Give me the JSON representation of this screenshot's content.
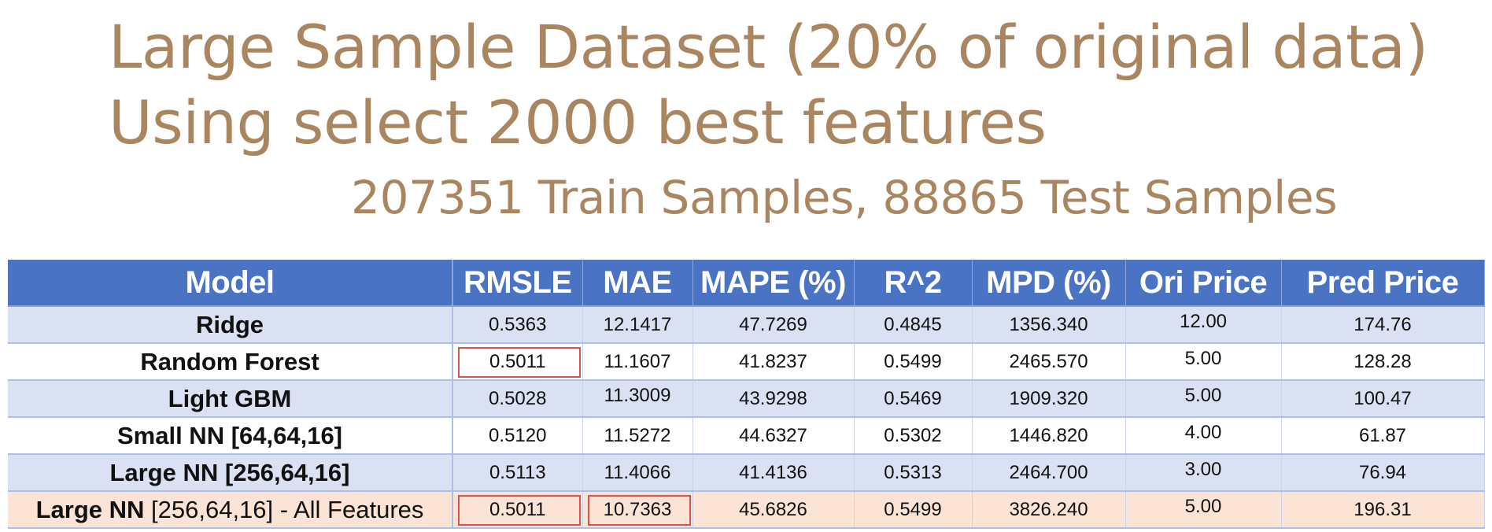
{
  "title": {
    "line1": "Large Sample Dataset (20% of original data)",
    "line2": "Using select 2000 best features",
    "subtitle": "207351 Train Samples, 88865 Test Samples"
  },
  "table": {
    "headers": [
      "Model",
      "RMSLE",
      "MAE",
      "MAPE (%)",
      "R^2",
      "MPD (%)",
      "Ori Price",
      "Pred Price"
    ],
    "rows": [
      {
        "model": "Ridge",
        "model_suffix": "",
        "values": [
          "0.5363",
          "12.1417",
          "47.7269",
          "0.4845",
          "1356.340",
          "12.00",
          "174.76"
        ]
      },
      {
        "model": "Random Forest",
        "model_suffix": "",
        "values": [
          "0.5011",
          "11.1607",
          "41.8237",
          "0.5499",
          "2465.570",
          "5.00",
          "128.28"
        ]
      },
      {
        "model": "Light GBM",
        "model_suffix": "",
        "values": [
          "0.5028",
          "11.3009",
          "43.9298",
          "0.5469",
          "1909.320",
          "5.00",
          "100.47"
        ]
      },
      {
        "model": "Small NN [64,64,16]",
        "model_suffix": "",
        "values": [
          "0.5120",
          "11.5272",
          "44.6327",
          "0.5302",
          "1446.820",
          "4.00",
          "61.87"
        ]
      },
      {
        "model": "Large NN [256,64,16]",
        "model_suffix": "",
        "values": [
          "0.5113",
          "11.4066",
          "41.4136",
          "0.5313",
          "2464.700",
          "3.00",
          "76.94"
        ]
      },
      {
        "model": "Large NN",
        "model_suffix": " [256,64,16] - All Features",
        "values": [
          "0.5011",
          "10.7363",
          "45.6826",
          "0.5499",
          "3826.240",
          "5.00",
          "196.31"
        ]
      }
    ],
    "colors": {
      "header_bg": "#4a73c3",
      "row_shade": "#d9e1f2",
      "row_highlight": "#fbe3d6",
      "box_highlight": "#d9534f",
      "title_color": "#a98560"
    }
  }
}
